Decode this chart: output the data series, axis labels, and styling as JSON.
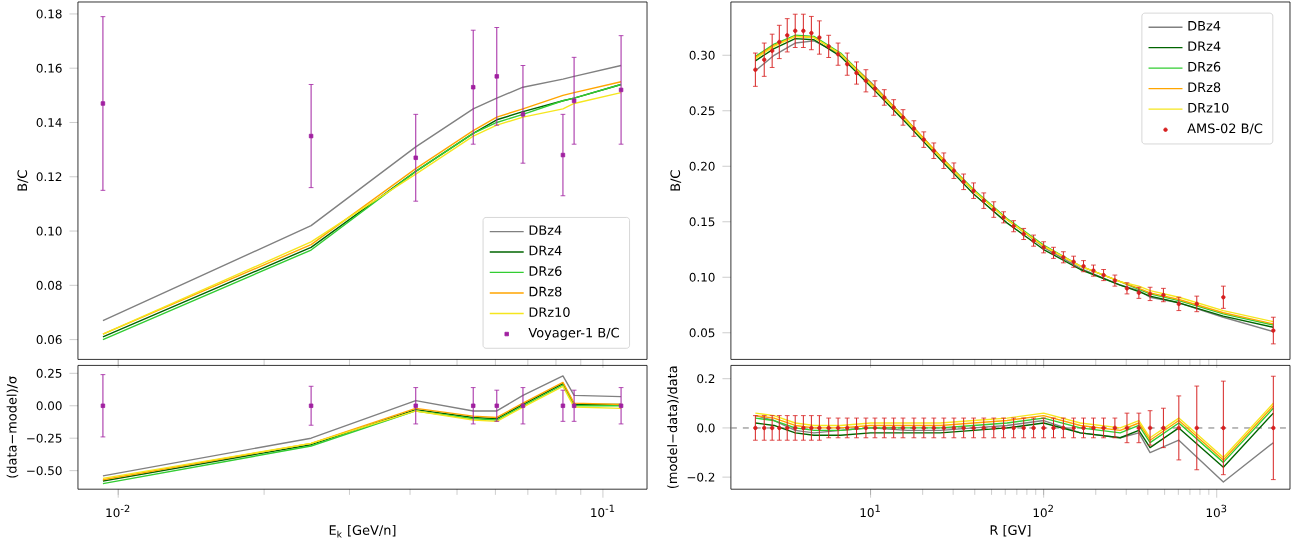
{
  "chart_data": [
    {
      "type": "line",
      "ylabel": "B/C",
      "log": "x",
      "legend": "bottom right",
      "tick_labels": "y",
      "xlim": [
        0.00826,
        0.1233
      ],
      "ylim": [
        0.0527,
        0.1844
      ],
      "xticks": [
        {
          "value": 0.01,
          "label": null
        },
        {
          "value": 0.1,
          "label": null
        }
      ],
      "yticks": [
        {
          "value": 0.06,
          "label": "0.06"
        },
        {
          "value": 0.08,
          "label": "0.08"
        },
        {
          "value": 0.1,
          "label": "0.10"
        },
        {
          "value": 0.12,
          "label": "0.12"
        },
        {
          "value": 0.14,
          "label": "0.14"
        },
        {
          "value": 0.16,
          "label": "0.16"
        },
        {
          "value": 0.18,
          "label": "0.18"
        }
      ],
      "x": [
        0.0093,
        0.025,
        0.0411,
        0.054,
        0.0604,
        0.0684,
        0.0827,
        0.0872,
        0.109
      ],
      "series": [
        {
          "name": "DBz4",
          "color": "#808080",
          "values": [
            0.067,
            0.102,
            0.131,
            0.145,
            0.149,
            0.153,
            0.156,
            0.157,
            0.161
          ]
        },
        {
          "name": "DRz4",
          "color": "#006400",
          "values": [
            0.061,
            0.094,
            0.122,
            0.136,
            0.141,
            0.144,
            0.148,
            0.149,
            0.154
          ]
        },
        {
          "name": "DRz6",
          "color": "#32cd32",
          "values": [
            0.06,
            0.093,
            0.122,
            0.136,
            0.14,
            0.143,
            0.148,
            0.149,
            0.154
          ]
        },
        {
          "name": "DRz8",
          "color": "#ffa500",
          "values": [
            0.062,
            0.095,
            0.123,
            0.137,
            0.142,
            0.145,
            0.15,
            0.151,
            0.155
          ]
        },
        {
          "name": "DRz10",
          "color": "#f5e61e",
          "values": [
            0.062,
            0.096,
            0.121,
            0.135,
            0.139,
            0.142,
            0.145,
            0.147,
            0.151
          ]
        },
        {
          "name": "Voyager-1 B/C",
          "type": "scatter",
          "marker": "square",
          "color": "#a020a0",
          "values": [
            0.147,
            0.135,
            0.127,
            0.153,
            0.157,
            0.143,
            0.128,
            0.148,
            0.152
          ],
          "errors": [
            0.032,
            0.019,
            0.016,
            0.021,
            0.018,
            0.018,
            0.015,
            0.016,
            0.02
          ]
        }
      ]
    },
    {
      "type": "line",
      "xlabel": "E$_{k}$ [GeV/n]",
      "ylabel": "(data−model)/σ",
      "log": "x",
      "xlim": [
        0.00826,
        0.1233
      ],
      "ylim": [
        -0.643,
        0.311
      ],
      "xticks": [
        {
          "value": 0.01,
          "label": "10$^{-2}$"
        },
        {
          "value": 0.1,
          "label": "10$^{-1}$"
        }
      ],
      "yticks": [
        {
          "value": -0.5,
          "label": "−0.50"
        },
        {
          "value": -0.25,
          "label": "−0.25"
        },
        {
          "value": 0,
          "label": "0.00"
        },
        {
          "value": 0.25,
          "label": "0.25"
        }
      ],
      "x": [
        0.0093,
        0.025,
        0.0411,
        0.054,
        0.0604,
        0.0684,
        0.0827,
        0.0872,
        0.109
      ],
      "series": [
        {
          "color": "#808080",
          "values": [
            -0.54,
            -0.25,
            0.04,
            -0.04,
            -0.04,
            0.08,
            0.23,
            0.08,
            0.07
          ]
        },
        {
          "color": "#006400",
          "values": [
            -0.58,
            -0.3,
            -0.03,
            -0.09,
            -0.1,
            0.01,
            0.17,
            0.01,
            0.01
          ]
        },
        {
          "color": "#32cd32",
          "values": [
            -0.6,
            -0.31,
            -0.04,
            -0.1,
            -0.11,
            0.0,
            0.16,
            0.0,
            0.0
          ]
        },
        {
          "color": "#ffa500",
          "values": [
            -0.57,
            -0.29,
            -0.02,
            -0.08,
            -0.09,
            0.02,
            0.18,
            0.02,
            0.01
          ]
        },
        {
          "color": "#f5e61e",
          "values": [
            -0.56,
            -0.29,
            -0.04,
            -0.11,
            -0.12,
            -0.01,
            0.15,
            -0.01,
            -0.02
          ]
        },
        {
          "type": "scatter",
          "marker": "square",
          "color": "#a020a0",
          "values": [
            0,
            0,
            0,
            0,
            0,
            0,
            0,
            0,
            0
          ],
          "errors": [
            0.24,
            0.15,
            0.14,
            0.14,
            0.12,
            0.14,
            0.12,
            0.12,
            0.14
          ]
        }
      ]
    },
    {
      "type": "line",
      "ylabel": "B/C",
      "log": "x",
      "legend": "top right",
      "tick_labels": "y",
      "xlim": [
        1.56,
        2650
      ],
      "ylim": [
        0.026,
        0.348
      ],
      "xticks": [
        {
          "value": 10,
          "label": null
        },
        {
          "value": 100,
          "label": null
        },
        {
          "value": 1000,
          "label": null
        }
      ],
      "yticks": [
        {
          "value": 0.05,
          "label": "0.05"
        },
        {
          "value": 0.1,
          "label": "0.10"
        },
        {
          "value": 0.15,
          "label": "0.15"
        },
        {
          "value": 0.2,
          "label": "0.20"
        },
        {
          "value": 0.25,
          "label": "0.25"
        },
        {
          "value": 0.3,
          "label": "0.30"
        }
      ],
      "series": [
        {
          "name": "DBz4",
          "color": "#808080",
          "x": [
            2.16,
            2.77,
            3.67,
            4.71,
            6.72,
            10,
            16.3,
            25.3,
            39.4,
            61.4,
            100,
            163,
            277,
            355,
            412,
            604,
            1092,
            2123
          ],
          "values": [
            0.286,
            0.3,
            0.311,
            0.313,
            0.301,
            0.276,
            0.241,
            0.208,
            0.178,
            0.152,
            0.127,
            0.108,
            0.093,
            0.088,
            0.082,
            0.077,
            0.064,
            0.051
          ]
        },
        {
          "name": "DRz4",
          "color": "#006400",
          "x": [
            2.16,
            2.77,
            3.67,
            4.71,
            6.72,
            10,
            16.3,
            25.3,
            39.4,
            61.4,
            100,
            163,
            277,
            355,
            412,
            604,
            1092,
            2123
          ],
          "values": [
            0.295,
            0.306,
            0.315,
            0.314,
            0.299,
            0.272,
            0.238,
            0.206,
            0.175,
            0.149,
            0.125,
            0.107,
            0.093,
            0.087,
            0.083,
            0.077,
            0.065,
            0.055
          ]
        },
        {
          "name": "DRz6",
          "color": "#32cd32",
          "x": [
            2.16,
            2.77,
            3.67,
            4.71,
            6.72,
            10,
            16.3,
            25.3,
            39.4,
            61.4,
            100,
            163,
            277,
            355,
            412,
            604,
            1092,
            2123
          ],
          "values": [
            0.299,
            0.31,
            0.318,
            0.317,
            0.302,
            0.275,
            0.241,
            0.209,
            0.179,
            0.153,
            0.129,
            0.11,
            0.096,
            0.089,
            0.085,
            0.079,
            0.067,
            0.057
          ]
        },
        {
          "name": "DRz8",
          "color": "#ffa500",
          "x": [
            2.16,
            2.77,
            3.67,
            4.71,
            6.72,
            10,
            16.3,
            25.3,
            39.4,
            61.4,
            100,
            163,
            277,
            355,
            412,
            604,
            1092,
            2123
          ],
          "values": [
            0.298,
            0.309,
            0.317,
            0.316,
            0.301,
            0.275,
            0.241,
            0.209,
            0.178,
            0.152,
            0.128,
            0.11,
            0.096,
            0.09,
            0.086,
            0.08,
            0.068,
            0.058
          ]
        },
        {
          "name": "DRz10",
          "color": "#f5e61e",
          "x": [
            2.16,
            2.77,
            3.67,
            4.71,
            6.72,
            10,
            16.3,
            25.3,
            39.4,
            61.4,
            100,
            163,
            277,
            355,
            412,
            604,
            1092,
            2123
          ],
          "values": [
            0.297,
            0.308,
            0.317,
            0.316,
            0.301,
            0.274,
            0.24,
            0.208,
            0.178,
            0.152,
            0.128,
            0.11,
            0.096,
            0.092,
            0.088,
            0.082,
            0.07,
            0.06
          ]
        },
        {
          "name": "AMS-02 B/C",
          "type": "scatter",
          "marker": "circle",
          "color": "#d62020",
          "x": [
            2.16,
            2.43,
            2.7,
            2.97,
            3.3,
            3.67,
            4.09,
            4.55,
            5.06,
            5.73,
            6.49,
            7.33,
            8.3,
            9.4,
            10.6,
            12.0,
            13.6,
            15.4,
            17.8,
            20.3,
            23.2,
            26.5,
            30.3,
            34.5,
            39.4,
            45.1,
            51.5,
            58.7,
            67.1,
            76.7,
            87.5,
            100,
            114,
            130,
            149,
            170,
            194,
            222,
            258,
            303,
            355,
            412,
            492,
            604,
            767,
            1092,
            2123
          ],
          "values": [
            0.287,
            0.296,
            0.304,
            0.312,
            0.318,
            0.322,
            0.322,
            0.32,
            0.316,
            0.308,
            0.301,
            0.292,
            0.284,
            0.277,
            0.27,
            0.262,
            0.253,
            0.244,
            0.234,
            0.224,
            0.214,
            0.205,
            0.196,
            0.186,
            0.178,
            0.169,
            0.161,
            0.154,
            0.146,
            0.139,
            0.133,
            0.127,
            0.122,
            0.118,
            0.114,
            0.11,
            0.106,
            0.102,
            0.097,
            0.09,
            0.086,
            0.085,
            0.084,
            0.076,
            0.076,
            0.082,
            0.052
          ],
          "errors": [
            0.015,
            0.015,
            0.015,
            0.015,
            0.015,
            0.015,
            0.015,
            0.015,
            0.015,
            0.01,
            0.01,
            0.01,
            0.01,
            0.01,
            0.007,
            0.007,
            0.007,
            0.007,
            0.007,
            0.007,
            0.007,
            0.007,
            0.007,
            0.007,
            0.007,
            0.007,
            0.007,
            0.005,
            0.005,
            0.005,
            0.005,
            0.005,
            0.005,
            0.005,
            0.005,
            0.005,
            0.005,
            0.005,
            0.005,
            0.005,
            0.005,
            0.006,
            0.006,
            0.006,
            0.007,
            0.01,
            0.012
          ]
        }
      ]
    },
    {
      "type": "line",
      "xlabel": "R [GV]",
      "ylabel": "(model−data)/data",
      "log": "x",
      "xlim": [
        1.56,
        2650
      ],
      "ylim": [
        -0.249,
        0.254
      ],
      "xticks": [
        {
          "value": 10,
          "label": "10$^{1}$"
        },
        {
          "value": 100,
          "label": "10$^{2}$"
        },
        {
          "value": 1000,
          "label": "10$^{3}$"
        }
      ],
      "yticks": [
        {
          "value": -0.2,
          "label": "−0.2"
        },
        {
          "value": 0,
          "label": "0.0"
        },
        {
          "value": 0.2,
          "label": "0.2"
        }
      ],
      "ref_lines": [
        {
          "axis": "y",
          "value": 0,
          "color": "#808080",
          "line_style": "dashed"
        }
      ],
      "series": [
        {
          "color": "#808080",
          "x": [
            2.16,
            2.77,
            3.67,
            4.71,
            6.72,
            10,
            16.3,
            25.3,
            39.4,
            61.4,
            100,
            163,
            277,
            355,
            412,
            604,
            1092,
            2123
          ],
          "values": [
            0.05,
            0.03,
            -0.01,
            -0.02,
            -0.01,
            0.0,
            -0.01,
            -0.01,
            0.0,
            0.01,
            0.03,
            -0.02,
            -0.04,
            -0.02,
            -0.1,
            -0.05,
            -0.22,
            -0.06
          ]
        },
        {
          "color": "#006400",
          "x": [
            2.16,
            2.77,
            3.67,
            4.71,
            6.72,
            10,
            16.3,
            25.3,
            39.4,
            61.4,
            100,
            163,
            277,
            355,
            412,
            604,
            1092,
            2123
          ],
          "values": [
            0.02,
            0.01,
            -0.02,
            -0.03,
            -0.03,
            -0.02,
            -0.02,
            -0.02,
            -0.01,
            0.0,
            0.02,
            -0.02,
            -0.04,
            -0.01,
            -0.08,
            0.0,
            -0.16,
            0.06
          ]
        },
        {
          "color": "#32cd32",
          "x": [
            2.16,
            2.77,
            3.67,
            4.71,
            6.72,
            10,
            16.3,
            25.3,
            39.4,
            61.4,
            100,
            163,
            277,
            355,
            412,
            604,
            1092,
            2123
          ],
          "values": [
            0.04,
            0.03,
            0.0,
            -0.01,
            -0.01,
            0.0,
            0.0,
            0.0,
            0.01,
            0.02,
            0.04,
            0.0,
            -0.02,
            0.01,
            -0.06,
            0.02,
            -0.14,
            0.08
          ]
        },
        {
          "color": "#ffa500",
          "x": [
            2.16,
            2.77,
            3.67,
            4.71,
            6.72,
            10,
            16.3,
            25.3,
            39.4,
            61.4,
            100,
            163,
            277,
            355,
            412,
            604,
            1092,
            2123
          ],
          "values": [
            0.05,
            0.04,
            0.01,
            0.0,
            0.0,
            0.01,
            0.01,
            0.01,
            0.02,
            0.03,
            0.05,
            0.01,
            -0.01,
            0.02,
            -0.05,
            0.03,
            -0.13,
            0.09
          ]
        },
        {
          "color": "#f5e61e",
          "x": [
            2.16,
            2.77,
            3.67,
            4.71,
            6.72,
            10,
            16.3,
            25.3,
            39.4,
            61.4,
            100,
            163,
            277,
            355,
            412,
            604,
            1092,
            2123
          ],
          "values": [
            0.06,
            0.05,
            0.02,
            0.01,
            0.01,
            0.02,
            0.02,
            0.02,
            0.03,
            0.04,
            0.06,
            0.02,
            0.0,
            0.03,
            -0.04,
            0.04,
            -0.12,
            0.1
          ]
        },
        {
          "type": "scatter",
          "marker": "circle",
          "color": "#d62020",
          "x": [
            2.16,
            2.43,
            2.7,
            2.97,
            3.3,
            3.67,
            4.09,
            4.55,
            5.06,
            5.73,
            6.49,
            7.33,
            8.3,
            9.4,
            10.6,
            12.0,
            13.6,
            15.4,
            17.8,
            20.3,
            23.2,
            26.5,
            30.3,
            34.5,
            39.4,
            45.1,
            51.5,
            58.7,
            67.1,
            76.7,
            87.5,
            100,
            114,
            130,
            149,
            170,
            194,
            222,
            258,
            303,
            355,
            412,
            492,
            604,
            767,
            1092,
            2123
          ],
          "values": [
            0,
            0,
            0,
            0,
            0,
            0,
            0,
            0,
            0,
            0,
            0,
            0,
            0,
            0,
            0,
            0,
            0,
            0,
            0,
            0,
            0,
            0,
            0,
            0,
            0,
            0,
            0,
            0,
            0,
            0,
            0,
            0,
            0,
            0,
            0,
            0,
            0,
            0,
            0,
            0,
            0,
            0,
            0,
            0,
            0,
            0,
            0
          ],
          "errors": [
            0.05,
            0.05,
            0.05,
            0.05,
            0.05,
            0.05,
            0.05,
            0.05,
            0.05,
            0.04,
            0.04,
            0.04,
            0.04,
            0.04,
            0.04,
            0.04,
            0.04,
            0.04,
            0.04,
            0.04,
            0.04,
            0.04,
            0.04,
            0.04,
            0.04,
            0.04,
            0.04,
            0.04,
            0.04,
            0.04,
            0.04,
            0.04,
            0.04,
            0.04,
            0.04,
            0.04,
            0.04,
            0.04,
            0.04,
            0.06,
            0.06,
            0.07,
            0.08,
            0.13,
            0.17,
            0.19,
            0.21
          ]
        }
      ]
    }
  ]
}
